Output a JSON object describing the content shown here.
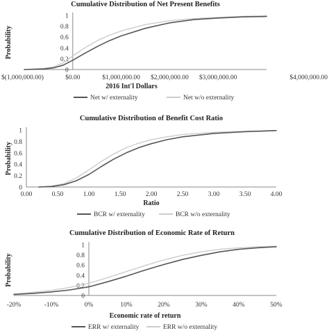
{
  "colors": {
    "with_externality": "#555555",
    "without_externality": "#cccccc",
    "axis": "#888888"
  },
  "chart_data": [
    {
      "type": "line",
      "title": "Cumulative Distribution of Net Present Benefits",
      "xlabel": "2016 Int'l Dollars",
      "ylabel": "Probability",
      "xlim": [
        -1000000,
        4000000
      ],
      "ylim": [
        0,
        1
      ],
      "x_ticks": [
        -1000000,
        0,
        1000000,
        2000000,
        3000000,
        4000000
      ],
      "x_tick_labels": [
        "$(1,000,000.00)",
        "$0.00",
        "$1,000,000.00",
        "$2,000,000.00",
        "$3,000,000.00",
        "$4,000,000.00"
      ],
      "y_ticks": [
        0,
        0.2,
        0.4,
        0.6,
        0.8,
        1
      ],
      "y_tick_labels": [
        "0",
        "0.2",
        "0.4",
        "0.6",
        "0.8",
        "1"
      ],
      "y_axis_at_x": 0,
      "grid": false,
      "legend_position": "bottom",
      "series": [
        {
          "name": "Net w/ externality",
          "x": [
            -1000000,
            -600000,
            -400000,
            -200000,
            0,
            250000,
            500000,
            750000,
            1000000,
            1500000,
            2000000,
            2500000,
            3000000,
            3500000,
            4000000
          ],
          "values": [
            0,
            0.01,
            0.03,
            0.08,
            0.17,
            0.3,
            0.42,
            0.53,
            0.62,
            0.76,
            0.86,
            0.92,
            0.95,
            0.97,
            0.98
          ]
        },
        {
          "name": "Net w/o externality",
          "x": [
            -1000000,
            -600000,
            -400000,
            -200000,
            0,
            250000,
            500000,
            750000,
            1000000,
            1500000,
            2000000,
            2500000,
            3000000,
            3500000,
            4000000
          ],
          "values": [
            0,
            0.02,
            0.05,
            0.12,
            0.25,
            0.4,
            0.53,
            0.63,
            0.71,
            0.83,
            0.9,
            0.94,
            0.96,
            0.98,
            0.99
          ]
        }
      ]
    },
    {
      "type": "line",
      "title": "Cumulative Distribution of Benefit Cost Ratio",
      "xlabel": "Ratio",
      "ylabel": "Probability",
      "xlim": [
        0,
        4
      ],
      "ylim": [
        0,
        1
      ],
      "x_ticks": [
        0,
        0.5,
        1,
        1.5,
        2,
        2.5,
        3,
        3.5,
        4
      ],
      "x_tick_labels": [
        "0.00",
        "0.50",
        "1.00",
        "1.50",
        "2.00",
        "2.50",
        "3.00",
        "3.50",
        "4.00"
      ],
      "y_ticks": [
        0,
        0.2,
        0.4,
        0.6,
        0.8,
        1
      ],
      "y_tick_labels": [
        "0",
        "0.2",
        "0.4",
        "0.6",
        "0.8",
        "1"
      ],
      "y_axis_at_x": 0,
      "grid": false,
      "legend_position": "bottom",
      "series": [
        {
          "name": "BCR w/ externality",
          "x": [
            0.2,
            0.4,
            0.6,
            0.8,
            1.0,
            1.2,
            1.4,
            1.6,
            1.8,
            2.0,
            2.25,
            2.5,
            3.0,
            3.5,
            4.0
          ],
          "values": [
            0,
            0.01,
            0.04,
            0.11,
            0.22,
            0.36,
            0.49,
            0.6,
            0.69,
            0.76,
            0.83,
            0.88,
            0.94,
            0.97,
            0.99
          ]
        },
        {
          "name": "BCR w/o externality",
          "x": [
            0.2,
            0.4,
            0.6,
            0.8,
            1.0,
            1.2,
            1.4,
            1.6,
            1.8,
            2.0,
            2.25,
            2.5,
            3.0,
            3.5,
            4.0
          ],
          "values": [
            0,
            0.01,
            0.06,
            0.16,
            0.3,
            0.45,
            0.58,
            0.69,
            0.77,
            0.83,
            0.88,
            0.92,
            0.96,
            0.98,
            0.99
          ]
        }
      ]
    },
    {
      "type": "line",
      "title": "Cumulative Distribution of Economic Rate of Return",
      "xlabel": "Economic rate of return",
      "ylabel": "Probability",
      "xlim": [
        -0.2,
        0.5
      ],
      "ylim": [
        0,
        1
      ],
      "x_ticks": [
        -0.2,
        -0.1,
        0,
        0.1,
        0.2,
        0.3,
        0.4,
        0.5
      ],
      "x_tick_labels": [
        "-20%",
        "-10%",
        "0%",
        "10%",
        "20%",
        "30%",
        "40%",
        "50%"
      ],
      "y_ticks": [
        0,
        0.2,
        0.4,
        0.6,
        0.8,
        1
      ],
      "y_tick_labels": [
        "0",
        "0.2",
        "0.4",
        "0.6",
        "0.8",
        "1"
      ],
      "y_axis_at_x": 0,
      "grid": false,
      "legend_position": "bottom",
      "series": [
        {
          "name": "ERR w/ externality",
          "x": [
            -0.2,
            -0.15,
            -0.1,
            -0.05,
            0,
            0.05,
            0.1,
            0.15,
            0.2,
            0.25,
            0.3,
            0.35,
            0.4,
            0.45,
            0.5
          ],
          "values": [
            0.02,
            0.04,
            0.07,
            0.11,
            0.17,
            0.27,
            0.38,
            0.5,
            0.61,
            0.71,
            0.79,
            0.86,
            0.91,
            0.94,
            0.96
          ]
        },
        {
          "name": "ERR w/o externality",
          "x": [
            -0.2,
            -0.15,
            -0.1,
            -0.05,
            0,
            0.05,
            0.1,
            0.15,
            0.2,
            0.25,
            0.3,
            0.35,
            0.4,
            0.45,
            0.5
          ],
          "values": [
            0.03,
            0.06,
            0.1,
            0.16,
            0.24,
            0.35,
            0.47,
            0.59,
            0.7,
            0.79,
            0.86,
            0.91,
            0.94,
            0.96,
            0.97
          ]
        }
      ]
    }
  ]
}
